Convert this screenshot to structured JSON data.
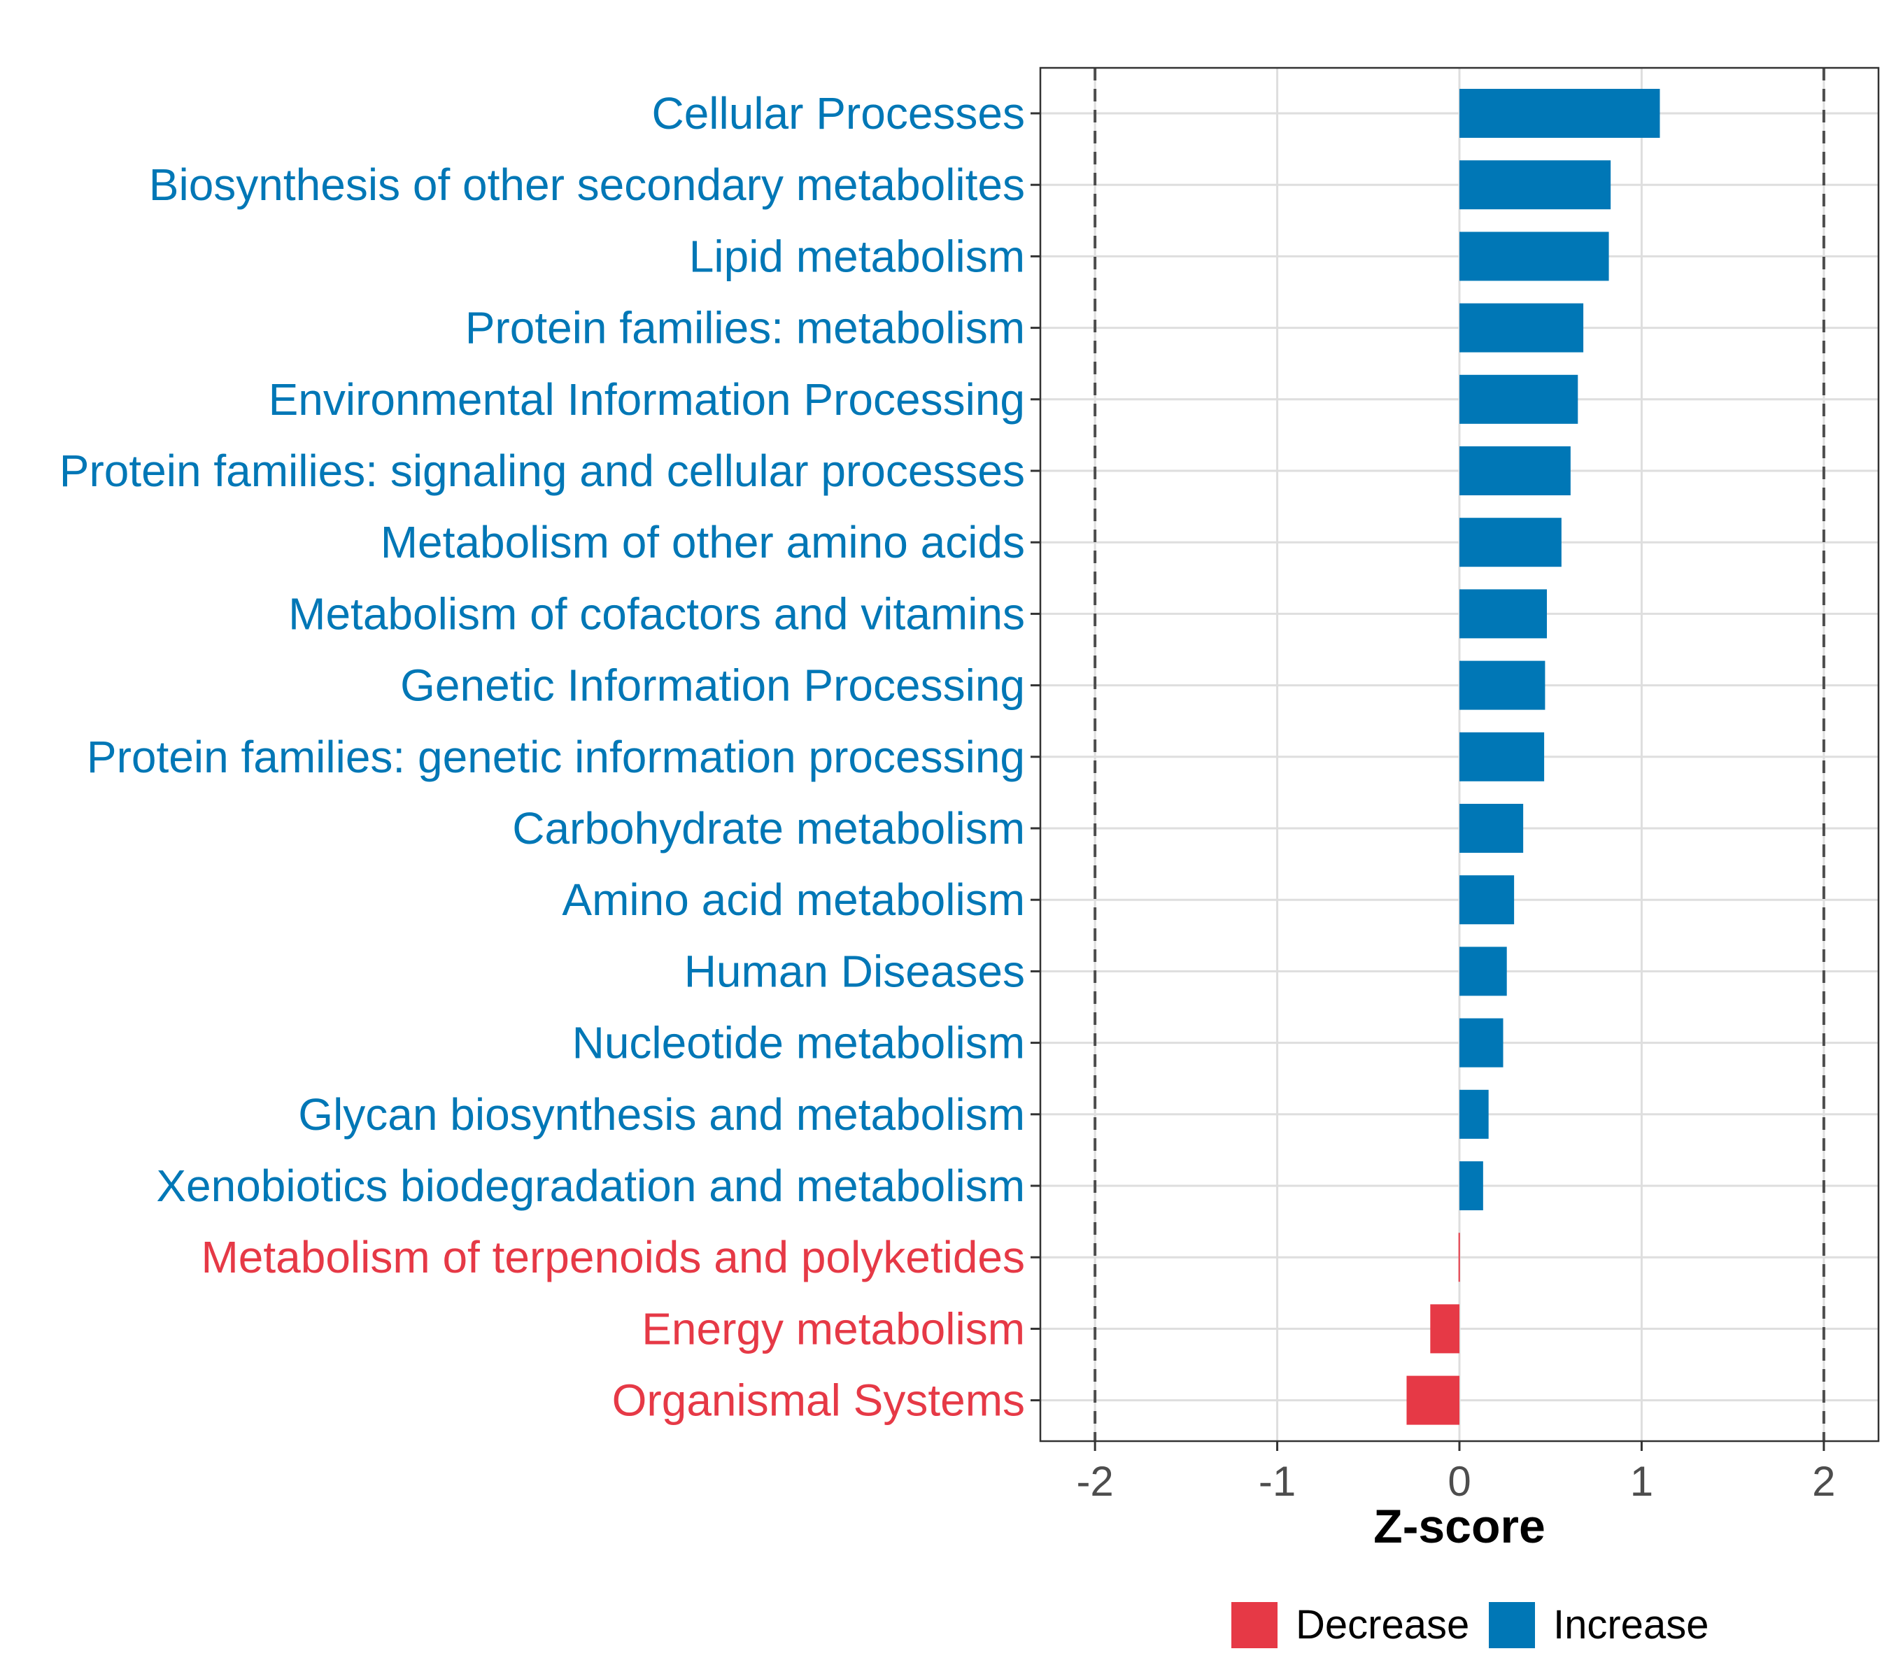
{
  "chart_data": {
    "type": "bar",
    "orientation": "horizontal",
    "title": "",
    "xlabel": "Z-score",
    "ylabel": "",
    "xlim": [
      -2.3,
      2.3
    ],
    "xticks": [
      -2,
      -1,
      0,
      1,
      2
    ],
    "tick_labels": [
      "-2",
      "-1",
      "0",
      "1",
      "2"
    ],
    "reference_lines": [
      -2,
      2
    ],
    "grid": true,
    "categories": [
      "Cellular Processes",
      "Biosynthesis of other secondary metabolites",
      "Lipid metabolism",
      "Protein families: metabolism",
      "Environmental Information Processing",
      "Protein families: signaling and cellular processes",
      "Metabolism of other amino acids",
      "Metabolism of cofactors and vitamins",
      "Genetic Information Processing",
      "Protein families: genetic information processing",
      "Carbohydrate metabolism",
      "Amino acid metabolism",
      "Human Diseases",
      "Nucleotide metabolism",
      "Glycan biosynthesis and metabolism",
      "Xenobiotics biodegradation and metabolism",
      "Metabolism of terpenoids and polyketides",
      "Energy metabolism",
      "Organismal Systems"
    ],
    "values": [
      1.1,
      0.83,
      0.82,
      0.68,
      0.65,
      0.61,
      0.56,
      0.48,
      0.47,
      0.465,
      0.35,
      0.3,
      0.26,
      0.24,
      0.16,
      0.13,
      -0.005,
      -0.16,
      -0.29
    ],
    "groups": [
      "Increase",
      "Increase",
      "Increase",
      "Increase",
      "Increase",
      "Increase",
      "Increase",
      "Increase",
      "Increase",
      "Increase",
      "Increase",
      "Increase",
      "Increase",
      "Increase",
      "Increase",
      "Increase",
      "Decrease",
      "Decrease",
      "Decrease"
    ],
    "legend": {
      "position": "bottom",
      "entries": [
        {
          "name": "Decrease",
          "color": "#e63946"
        },
        {
          "name": "Increase",
          "color": "#0077b6"
        }
      ]
    },
    "colors": {
      "Increase": "#0077b6",
      "Decrease": "#e63946"
    }
  }
}
